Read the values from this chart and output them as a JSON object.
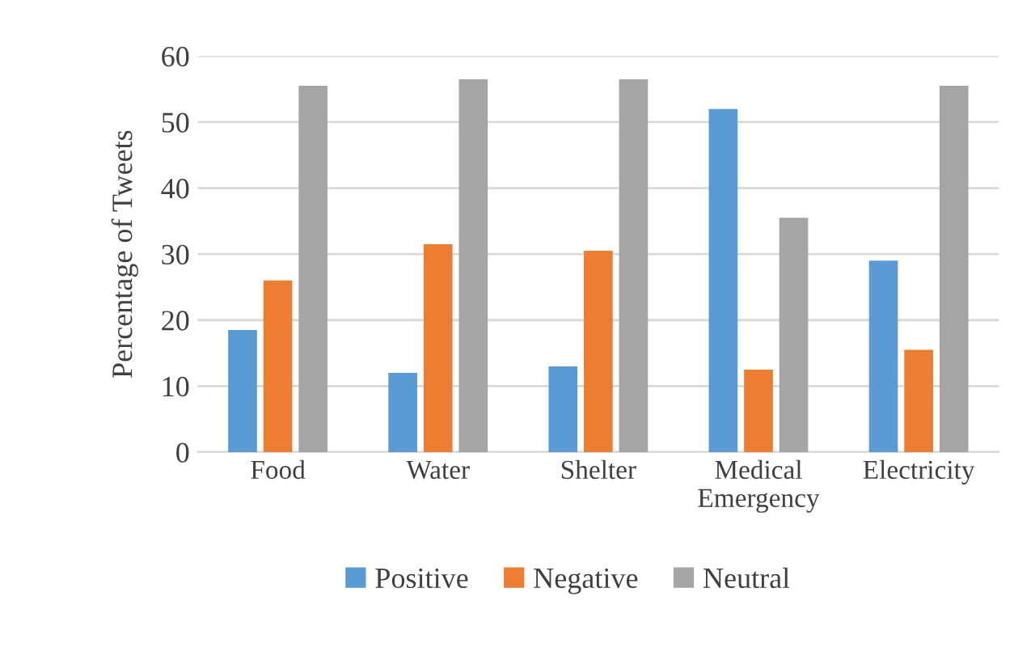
{
  "chart_data": {
    "type": "bar",
    "ylabel": "Percentage of Tweets",
    "categories": [
      "Food",
      "Water",
      "Shelter",
      "Medical\nEmergency",
      "Electricity"
    ],
    "series": [
      {
        "name": "Positive",
        "color": "#5b9bd5",
        "values": [
          18.5,
          12,
          13,
          52,
          29
        ]
      },
      {
        "name": "Negative",
        "color": "#ed7d31",
        "values": [
          26,
          31.5,
          30.5,
          12.5,
          15.5
        ]
      },
      {
        "name": "Neutral",
        "color": "#a5a5a5",
        "values": [
          55.5,
          56.5,
          56.5,
          35.5,
          55.5
        ]
      }
    ],
    "ylim": [
      0,
      60
    ],
    "yticks": [
      0,
      10,
      20,
      30,
      40,
      50,
      60
    ],
    "grid": "y",
    "legend": "bottom"
  }
}
